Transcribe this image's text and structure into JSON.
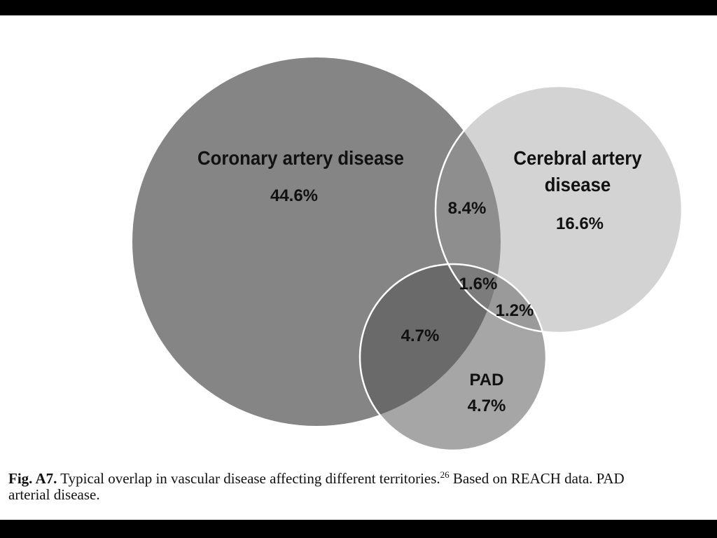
{
  "diagram": {
    "colors": {
      "coronary": "#858585",
      "cerebral": "#d3d3d3",
      "pad": "#a6a6a6",
      "cor_cer": "#8e8e8e",
      "cor_pad": "#6a6a6a",
      "cer_pad": "#9a9a9a",
      "all_three": "#7c7c7c",
      "outline": "#ffffff"
    },
    "sets": {
      "coronary": {
        "name": "Coronary artery disease",
        "value": "44.6%"
      },
      "cerebral": {
        "name_line1": "Cerebral artery",
        "name_line2": "disease",
        "value": "16.6%"
      },
      "pad": {
        "name": "PAD",
        "value": "4.7%"
      }
    },
    "overlaps": {
      "coronary_cerebral": "8.4%",
      "all_three": "1.6%",
      "cerebral_pad": "1.2%",
      "coronary_pad": "4.7%"
    }
  },
  "caption": {
    "label": "Fig. A7.",
    "text": "Typical overlap in vascular disease affecting different territories.",
    "ref": "26",
    "text2": "Based on REACH data. PAD",
    "line2": "arterial disease."
  }
}
